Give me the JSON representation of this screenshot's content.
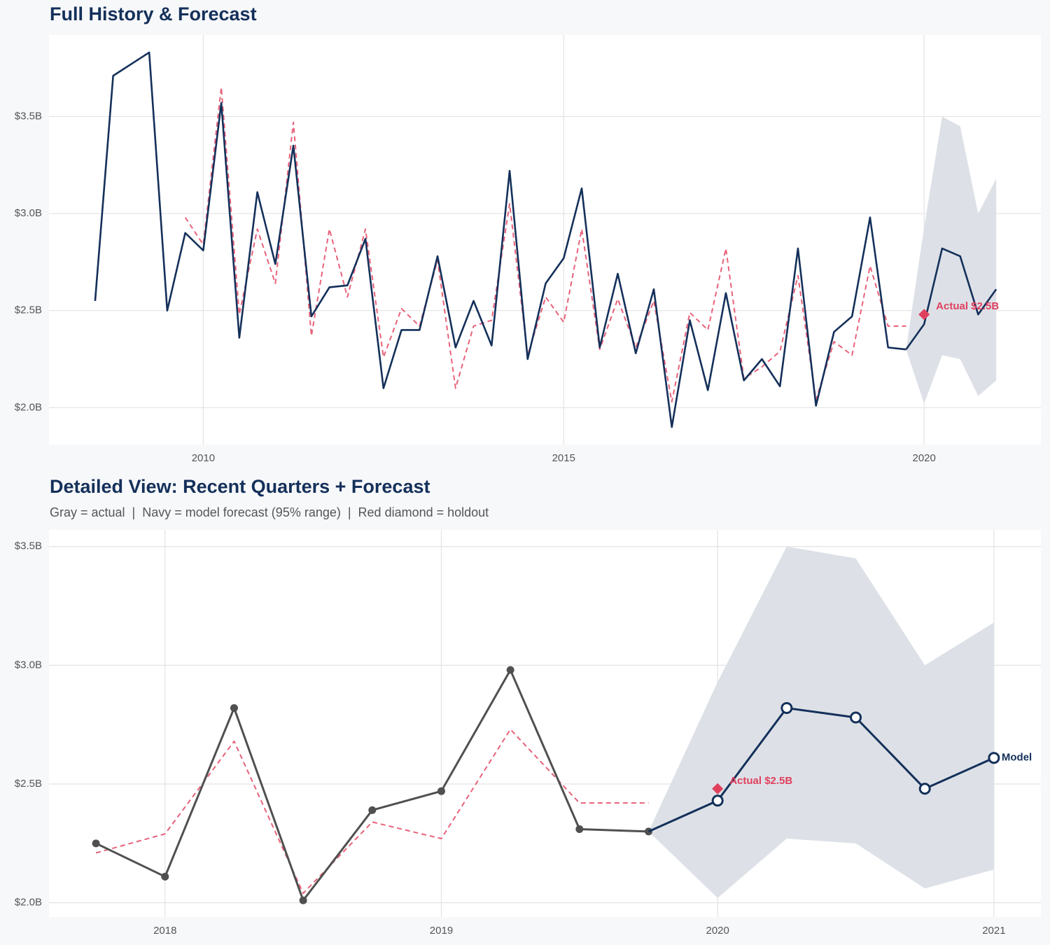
{
  "chart_data": [
    {
      "type": "line",
      "title": "Full History & Forecast",
      "xlim": [
        2007.86,
        2021.62
      ],
      "ylim": [
        1.81,
        3.92
      ],
      "xticks": [
        2010,
        2015,
        2020
      ],
      "yticks": [
        {
          "value": 2.0,
          "label": "$2.0B"
        },
        {
          "value": 2.5,
          "label": "$2.5B"
        },
        {
          "value": 3.0,
          "label": "$3.0B"
        },
        {
          "value": 3.5,
          "label": "$3.5B"
        }
      ],
      "grid": true,
      "band": {
        "color": "#dde1e7",
        "x": [
          2019.75,
          2020,
          2020.25,
          2020.5,
          2020.75,
          2021
        ],
        "lower": [
          2.3,
          2.02,
          2.27,
          2.25,
          2.06,
          2.14
        ],
        "upper": [
          2.3,
          2.93,
          3.5,
          3.45,
          3.0,
          3.18
        ]
      },
      "series": [
        {
          "color": "#e8627a",
          "dashed": true,
          "width": 2,
          "x": [
            2009.75,
            2010,
            2010.25,
            2010.5,
            2010.75,
            2011,
            2011.25,
            2011.5,
            2011.75,
            2012,
            2012.25,
            2012.5,
            2012.75,
            2013,
            2013.25,
            2013.5,
            2013.75,
            2014,
            2014.25,
            2014.5,
            2014.75,
            2015,
            2015.25,
            2015.5,
            2015.75,
            2016,
            2016.25,
            2016.5,
            2016.75,
            2017,
            2017.25,
            2017.5,
            2017.75,
            2018,
            2018.25,
            2018.5,
            2018.75,
            2019,
            2019.25,
            2019.5,
            2019.75
          ],
          "values": [
            2.98,
            2.84,
            3.65,
            2.48,
            2.92,
            2.64,
            3.47,
            2.37,
            2.92,
            2.57,
            2.92,
            2.26,
            2.51,
            2.42,
            2.76,
            2.1,
            2.42,
            2.45,
            3.05,
            2.27,
            2.57,
            2.44,
            2.92,
            2.3,
            2.56,
            2.31,
            2.55,
            2.03,
            2.49,
            2.4,
            2.82,
            2.15,
            2.21,
            2.29,
            2.68,
            2.04,
            2.34,
            2.27,
            2.73,
            2.42,
            2.42
          ]
        },
        {
          "color": "#14305a",
          "dashed": false,
          "width": 2.6,
          "x": [
            2008.5,
            2008.75,
            2009,
            2009.25,
            2009.5,
            2009.75,
            2010,
            2010.25,
            2010.5,
            2010.75,
            2011,
            2011.25,
            2011.5,
            2011.75,
            2012,
            2012.25,
            2012.5,
            2012.75,
            2013,
            2013.25,
            2013.5,
            2013.75,
            2014,
            2014.25,
            2014.5,
            2014.75,
            2015,
            2015.25,
            2015.5,
            2015.75,
            2016,
            2016.25,
            2016.5,
            2016.75,
            2017,
            2017.25,
            2017.5,
            2017.75,
            2018,
            2018.25,
            2018.5,
            2018.75,
            2019,
            2019.25,
            2019.5,
            2019.75
          ],
          "values": [
            2.55,
            3.71,
            3.77,
            3.83,
            2.5,
            2.9,
            2.81,
            3.57,
            2.36,
            3.11,
            2.74,
            3.35,
            2.47,
            2.62,
            2.63,
            2.87,
            2.1,
            2.4,
            2.4,
            2.78,
            2.31,
            2.55,
            2.32,
            3.22,
            2.25,
            2.64,
            2.77,
            3.13,
            2.31,
            2.69,
            2.28,
            2.61,
            1.9,
            2.45,
            2.09,
            2.59,
            2.14,
            2.25,
            2.11,
            2.82,
            2.01,
            2.39,
            2.47,
            2.98,
            2.31,
            2.3
          ]
        },
        {
          "color": "#14305a",
          "dashed": false,
          "width": 2.6,
          "x": [
            2019.75,
            2020,
            2020.25,
            2020.5,
            2020.75,
            2021
          ],
          "values": [
            2.3,
            2.43,
            2.82,
            2.78,
            2.48,
            2.61
          ]
        }
      ],
      "points": [
        {
          "shape": "diamond",
          "color": "#e0405e",
          "x": 2020,
          "value": 2.48,
          "value_label": "Actual $2.5B"
        }
      ]
    },
    {
      "type": "line",
      "title": "Detailed View: Recent Quarters + Forecast",
      "subtitle": "Gray = actual  |  Navy = model forecast (95% range)  |  Red diamond = holdout",
      "xlim": [
        2017.58,
        2021.17
      ],
      "ylim": [
        1.94,
        3.57
      ],
      "xticks": [
        2018,
        2019,
        2020,
        2021
      ],
      "yticks": [
        {
          "value": 2.0,
          "label": "$2.0B"
        },
        {
          "value": 2.5,
          "label": "$2.5B"
        },
        {
          "value": 3.0,
          "label": "$3.0B"
        },
        {
          "value": 3.5,
          "label": "$3.5B"
        }
      ],
      "grid": true,
      "band": {
        "color": "#dde1e7",
        "x": [
          2019.75,
          2020,
          2020.25,
          2020.5,
          2020.75,
          2021
        ],
        "lower": [
          2.3,
          2.02,
          2.27,
          2.25,
          2.06,
          2.14
        ],
        "upper": [
          2.3,
          2.93,
          3.5,
          3.45,
          3.0,
          3.18
        ]
      },
      "series": [
        {
          "color": "#e8627a",
          "dashed": true,
          "width": 2,
          "x": [
            2017.75,
            2018,
            2018.25,
            2018.5,
            2018.75,
            2019,
            2019.25,
            2019.5,
            2019.75
          ],
          "values": [
            2.21,
            2.29,
            2.68,
            2.04,
            2.34,
            2.27,
            2.73,
            2.42,
            2.42
          ]
        },
        {
          "color": "#505050",
          "dashed": false,
          "width": 3,
          "marker": "dot",
          "x": [
            2017.75,
            2018,
            2018.25,
            2018.5,
            2018.75,
            2019,
            2019.25,
            2019.5,
            2019.75
          ],
          "values": [
            2.25,
            2.11,
            2.82,
            2.01,
            2.39,
            2.47,
            2.98,
            2.31,
            2.3
          ]
        },
        {
          "color": "#14305a",
          "dashed": false,
          "width": 3,
          "marker": "open-circle",
          "end_label": "Model",
          "x": [
            2019.75,
            2020,
            2020.25,
            2020.5,
            2020.75,
            2021
          ],
          "values": [
            2.3,
            2.43,
            2.82,
            2.78,
            2.48,
            2.61
          ]
        }
      ],
      "points": [
        {
          "shape": "diamond",
          "color": "#e0405e",
          "x": 2020,
          "value": 2.48,
          "value_label": "Actual $2.5B"
        }
      ]
    }
  ]
}
